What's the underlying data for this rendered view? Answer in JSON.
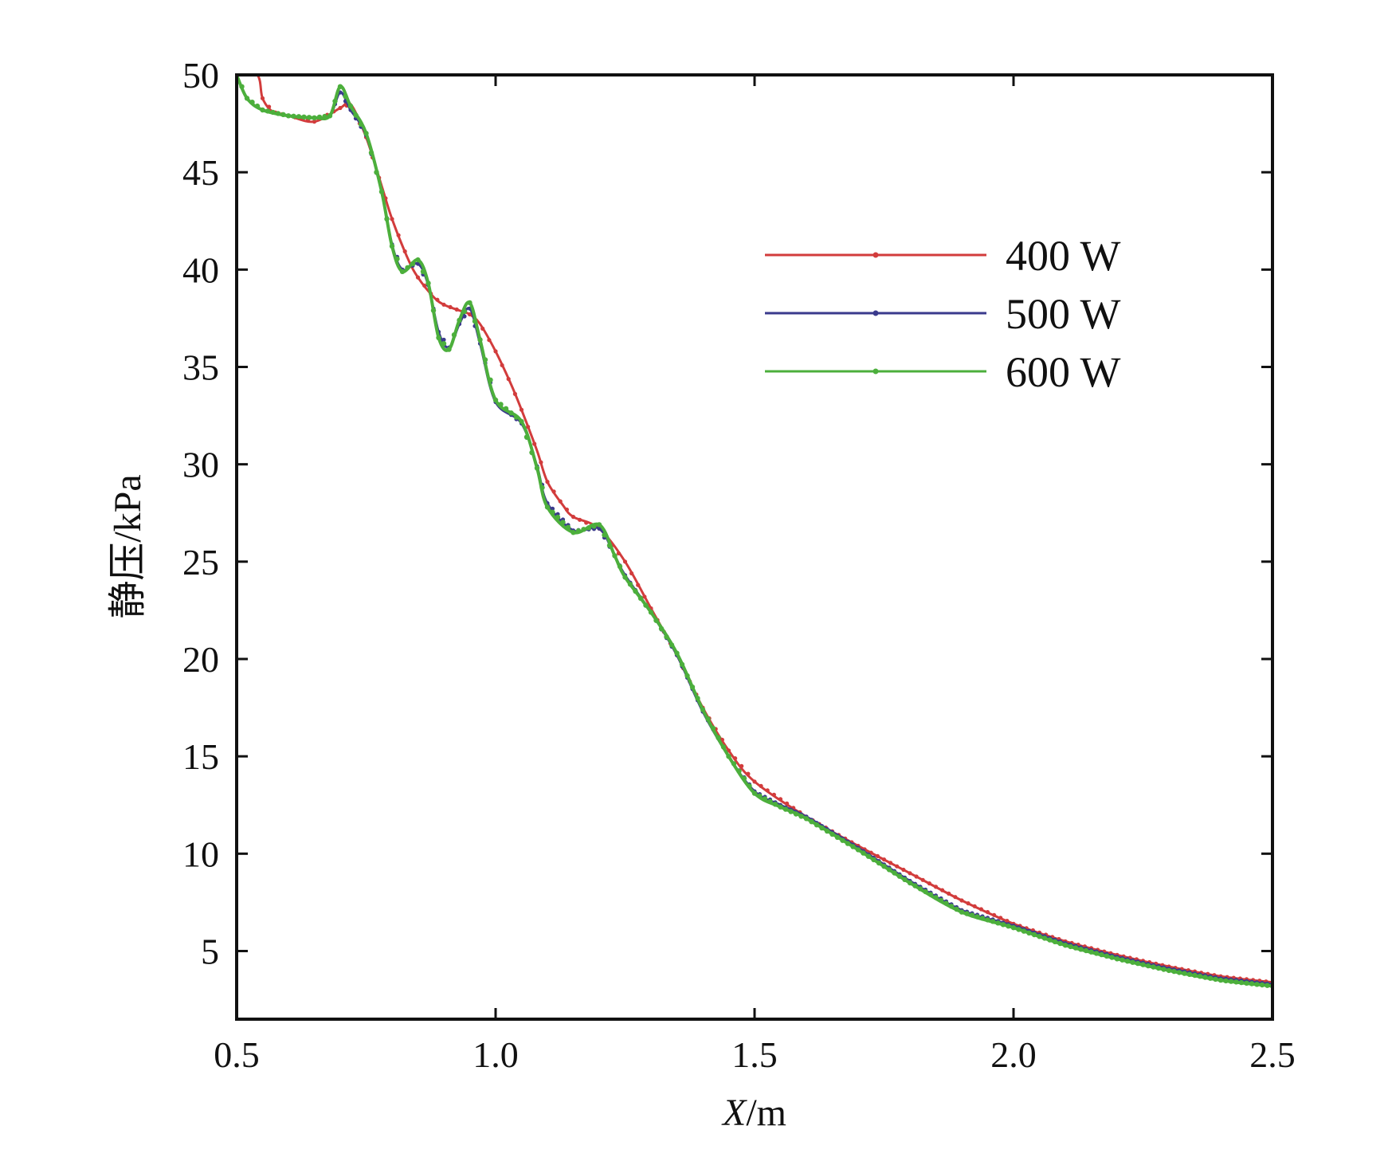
{
  "chart_data": {
    "type": "line",
    "title": "",
    "xlabel": "X/m",
    "xlabel_var": "X",
    "xlabel_unit": "/m",
    "ylabel": "静压/kPa",
    "xlim": [
      0.5,
      2.5
    ],
    "ylim": [
      1.5,
      50
    ],
    "x_ticks": [
      0.5,
      1.0,
      1.5,
      2.0,
      2.5
    ],
    "x_tick_labels": [
      "0.5",
      "1.0",
      "1.5",
      "2.0",
      "2.5"
    ],
    "y_ticks": [
      5,
      10,
      15,
      20,
      25,
      30,
      35,
      40,
      45,
      50
    ],
    "y_tick_labels": [
      "5",
      "10",
      "15",
      "20",
      "25",
      "30",
      "35",
      "40",
      "45",
      "50"
    ],
    "grid": false,
    "legend_position": "top-right",
    "series": [
      {
        "name": "400 W",
        "color": "#d23c3c",
        "x": [
          0.5,
          0.54,
          0.55,
          0.57,
          0.6,
          0.65,
          0.7,
          0.72,
          0.75,
          0.78,
          0.8,
          0.83,
          0.85,
          0.88,
          0.9,
          0.93,
          0.95,
          0.97,
          1.0,
          1.03,
          1.05,
          1.08,
          1.1,
          1.13,
          1.15,
          1.2,
          1.25,
          1.3,
          1.35,
          1.4,
          1.45,
          1.5,
          1.6,
          1.7,
          1.8,
          1.9,
          2.0,
          2.1,
          2.2,
          2.3,
          2.4,
          2.5
        ],
        "y": [
          50.5,
          50.0,
          48.8,
          48.1,
          47.9,
          47.6,
          48.3,
          48.5,
          46.8,
          44.3,
          42.6,
          40.6,
          39.6,
          38.6,
          38.2,
          37.9,
          37.7,
          37.2,
          35.8,
          34.1,
          32.8,
          30.7,
          29.1,
          27.9,
          27.3,
          26.7,
          25.0,
          22.6,
          20.2,
          17.5,
          15.3,
          13.7,
          11.9,
          10.4,
          9.0,
          7.6,
          6.4,
          5.5,
          4.8,
          4.2,
          3.7,
          3.4
        ]
      },
      {
        "name": "500 W",
        "color": "#3a3a8c",
        "x": [
          0.5,
          0.52,
          0.55,
          0.6,
          0.65,
          0.68,
          0.7,
          0.72,
          0.75,
          0.78,
          0.8,
          0.82,
          0.85,
          0.87,
          0.89,
          0.91,
          0.93,
          0.95,
          0.97,
          1.0,
          1.05,
          1.08,
          1.1,
          1.15,
          1.2,
          1.23,
          1.25,
          1.3,
          1.35,
          1.4,
          1.45,
          1.5,
          1.55,
          1.6,
          1.7,
          1.8,
          1.9,
          2.0,
          2.1,
          2.2,
          2.3,
          2.4,
          2.5
        ],
        "y": [
          50.0,
          48.8,
          48.2,
          47.9,
          47.8,
          47.9,
          49.1,
          48.2,
          46.9,
          44.0,
          41.3,
          40.0,
          40.3,
          39.2,
          36.8,
          36.0,
          37.2,
          38.0,
          36.2,
          33.2,
          32.1,
          29.9,
          28.0,
          26.6,
          26.7,
          25.3,
          24.3,
          22.4,
          20.2,
          17.3,
          15.0,
          13.2,
          12.5,
          11.9,
          10.3,
          8.6,
          7.1,
          6.3,
          5.4,
          4.7,
          4.1,
          3.6,
          3.3
        ]
      },
      {
        "name": "600 W",
        "color": "#4caf3c",
        "x": [
          0.5,
          0.52,
          0.55,
          0.6,
          0.65,
          0.68,
          0.7,
          0.72,
          0.75,
          0.78,
          0.8,
          0.82,
          0.85,
          0.87,
          0.89,
          0.91,
          0.93,
          0.95,
          0.97,
          1.0,
          1.05,
          1.08,
          1.1,
          1.15,
          1.2,
          1.23,
          1.25,
          1.3,
          1.35,
          1.4,
          1.45,
          1.5,
          1.55,
          1.6,
          1.7,
          1.8,
          1.9,
          2.0,
          2.1,
          2.2,
          2.3,
          2.4,
          2.5
        ],
        "y": [
          50.0,
          48.8,
          48.2,
          47.9,
          47.8,
          47.9,
          49.4,
          48.4,
          47.0,
          44.0,
          41.2,
          39.9,
          40.5,
          39.3,
          36.5,
          35.9,
          37.4,
          38.3,
          36.4,
          33.3,
          32.2,
          29.8,
          27.8,
          26.5,
          26.9,
          25.3,
          24.2,
          22.4,
          20.3,
          17.4,
          15.0,
          13.1,
          12.4,
          11.8,
          10.2,
          8.5,
          7.0,
          6.2,
          5.3,
          4.6,
          4.0,
          3.5,
          3.2
        ]
      }
    ]
  }
}
